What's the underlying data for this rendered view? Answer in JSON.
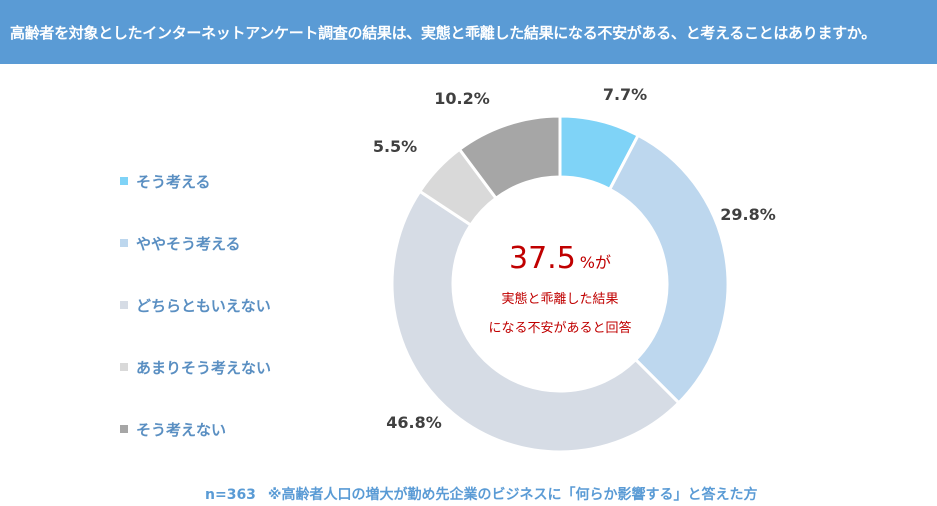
{
  "header": {
    "title": "高齢者を対象としたインターネットアンケート調査の結果は、実態と乖離した結果になる不安がある、と考えることはありますか。"
  },
  "chart_data": {
    "type": "pie",
    "categories": [
      "そう考える",
      "ややそう考える",
      "どちらともいえない",
      "あまりそう考えない",
      "そう考えない"
    ],
    "values": [
      7.7,
      29.8,
      46.8,
      5.5,
      10.2
    ],
    "value_labels": [
      "7.7%",
      "29.8%",
      "46.8%",
      "5.5%",
      "10.2%"
    ],
    "colors": [
      "#7fd3f7",
      "#bdd7ee",
      "#d6dce5",
      "#d9d9d9",
      "#a6a6a6"
    ],
    "legend_placement": "left",
    "donut": true
  },
  "center": {
    "value": "37.5",
    "suffix": "%が",
    "line1": "実態と乖離した結果",
    "line2": "になる不安があると回答",
    "color": "#c00000"
  },
  "footnote": {
    "sample": "n=363",
    "note": "※高齢者人口の増大が勤め先企業のビジネスに「何らか影響する」と答えた方"
  }
}
